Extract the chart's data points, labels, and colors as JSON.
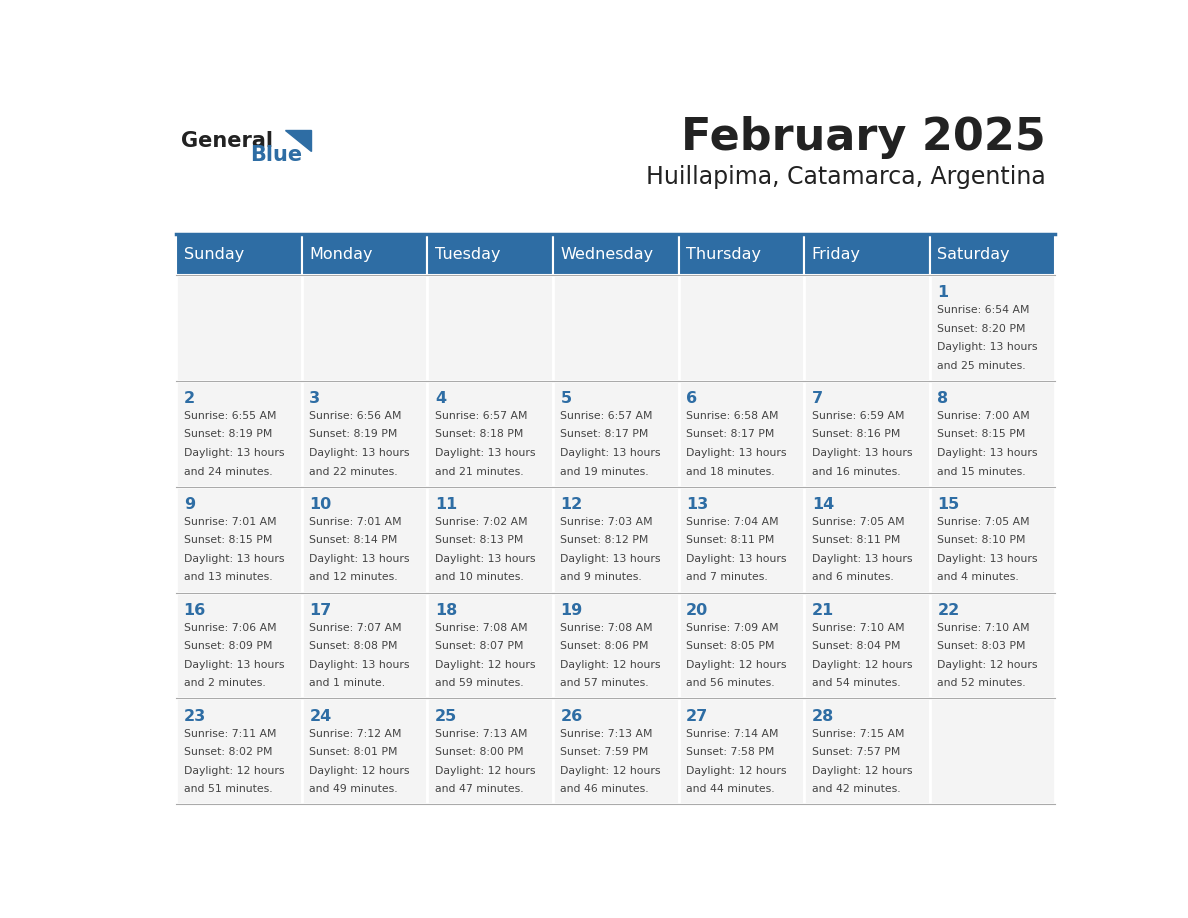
{
  "title": "February 2025",
  "subtitle": "Huillapima, Catamarca, Argentina",
  "days_of_week": [
    "Sunday",
    "Monday",
    "Tuesday",
    "Wednesday",
    "Thursday",
    "Friday",
    "Saturday"
  ],
  "header_bg": "#2E6DA4",
  "header_text": "#FFFFFF",
  "cell_bg": "#F4F4F4",
  "border_color": "#FFFFFF",
  "day_num_color": "#2E6DA4",
  "text_color": "#444444",
  "title_color": "#222222",
  "logo_general_color": "#222222",
  "logo_blue_color": "#2E6DA4",
  "calendar": [
    [
      null,
      null,
      null,
      null,
      null,
      null,
      {
        "day": 1,
        "sunrise": "6:54 AM",
        "sunset": "8:20 PM",
        "daylight": "13 hours and 25 minutes."
      }
    ],
    [
      {
        "day": 2,
        "sunrise": "6:55 AM",
        "sunset": "8:19 PM",
        "daylight": "13 hours and 24 minutes."
      },
      {
        "day": 3,
        "sunrise": "6:56 AM",
        "sunset": "8:19 PM",
        "daylight": "13 hours and 22 minutes."
      },
      {
        "day": 4,
        "sunrise": "6:57 AM",
        "sunset": "8:18 PM",
        "daylight": "13 hours and 21 minutes."
      },
      {
        "day": 5,
        "sunrise": "6:57 AM",
        "sunset": "8:17 PM",
        "daylight": "13 hours and 19 minutes."
      },
      {
        "day": 6,
        "sunrise": "6:58 AM",
        "sunset": "8:17 PM",
        "daylight": "13 hours and 18 minutes."
      },
      {
        "day": 7,
        "sunrise": "6:59 AM",
        "sunset": "8:16 PM",
        "daylight": "13 hours and 16 minutes."
      },
      {
        "day": 8,
        "sunrise": "7:00 AM",
        "sunset": "8:15 PM",
        "daylight": "13 hours and 15 minutes."
      }
    ],
    [
      {
        "day": 9,
        "sunrise": "7:01 AM",
        "sunset": "8:15 PM",
        "daylight": "13 hours and 13 minutes."
      },
      {
        "day": 10,
        "sunrise": "7:01 AM",
        "sunset": "8:14 PM",
        "daylight": "13 hours and 12 minutes."
      },
      {
        "day": 11,
        "sunrise": "7:02 AM",
        "sunset": "8:13 PM",
        "daylight": "13 hours and 10 minutes."
      },
      {
        "day": 12,
        "sunrise": "7:03 AM",
        "sunset": "8:12 PM",
        "daylight": "13 hours and 9 minutes."
      },
      {
        "day": 13,
        "sunrise": "7:04 AM",
        "sunset": "8:11 PM",
        "daylight": "13 hours and 7 minutes."
      },
      {
        "day": 14,
        "sunrise": "7:05 AM",
        "sunset": "8:11 PM",
        "daylight": "13 hours and 6 minutes."
      },
      {
        "day": 15,
        "sunrise": "7:05 AM",
        "sunset": "8:10 PM",
        "daylight": "13 hours and 4 minutes."
      }
    ],
    [
      {
        "day": 16,
        "sunrise": "7:06 AM",
        "sunset": "8:09 PM",
        "daylight": "13 hours and 2 minutes."
      },
      {
        "day": 17,
        "sunrise": "7:07 AM",
        "sunset": "8:08 PM",
        "daylight": "13 hours and 1 minute."
      },
      {
        "day": 18,
        "sunrise": "7:08 AM",
        "sunset": "8:07 PM",
        "daylight": "12 hours and 59 minutes."
      },
      {
        "day": 19,
        "sunrise": "7:08 AM",
        "sunset": "8:06 PM",
        "daylight": "12 hours and 57 minutes."
      },
      {
        "day": 20,
        "sunrise": "7:09 AM",
        "sunset": "8:05 PM",
        "daylight": "12 hours and 56 minutes."
      },
      {
        "day": 21,
        "sunrise": "7:10 AM",
        "sunset": "8:04 PM",
        "daylight": "12 hours and 54 minutes."
      },
      {
        "day": 22,
        "sunrise": "7:10 AM",
        "sunset": "8:03 PM",
        "daylight": "12 hours and 52 minutes."
      }
    ],
    [
      {
        "day": 23,
        "sunrise": "7:11 AM",
        "sunset": "8:02 PM",
        "daylight": "12 hours and 51 minutes."
      },
      {
        "day": 24,
        "sunrise": "7:12 AM",
        "sunset": "8:01 PM",
        "daylight": "12 hours and 49 minutes."
      },
      {
        "day": 25,
        "sunrise": "7:13 AM",
        "sunset": "8:00 PM",
        "daylight": "12 hours and 47 minutes."
      },
      {
        "day": 26,
        "sunrise": "7:13 AM",
        "sunset": "7:59 PM",
        "daylight": "12 hours and 46 minutes."
      },
      {
        "day": 27,
        "sunrise": "7:14 AM",
        "sunset": "7:58 PM",
        "daylight": "12 hours and 44 minutes."
      },
      {
        "day": 28,
        "sunrise": "7:15 AM",
        "sunset": "7:57 PM",
        "daylight": "12 hours and 42 minutes."
      },
      null
    ]
  ]
}
